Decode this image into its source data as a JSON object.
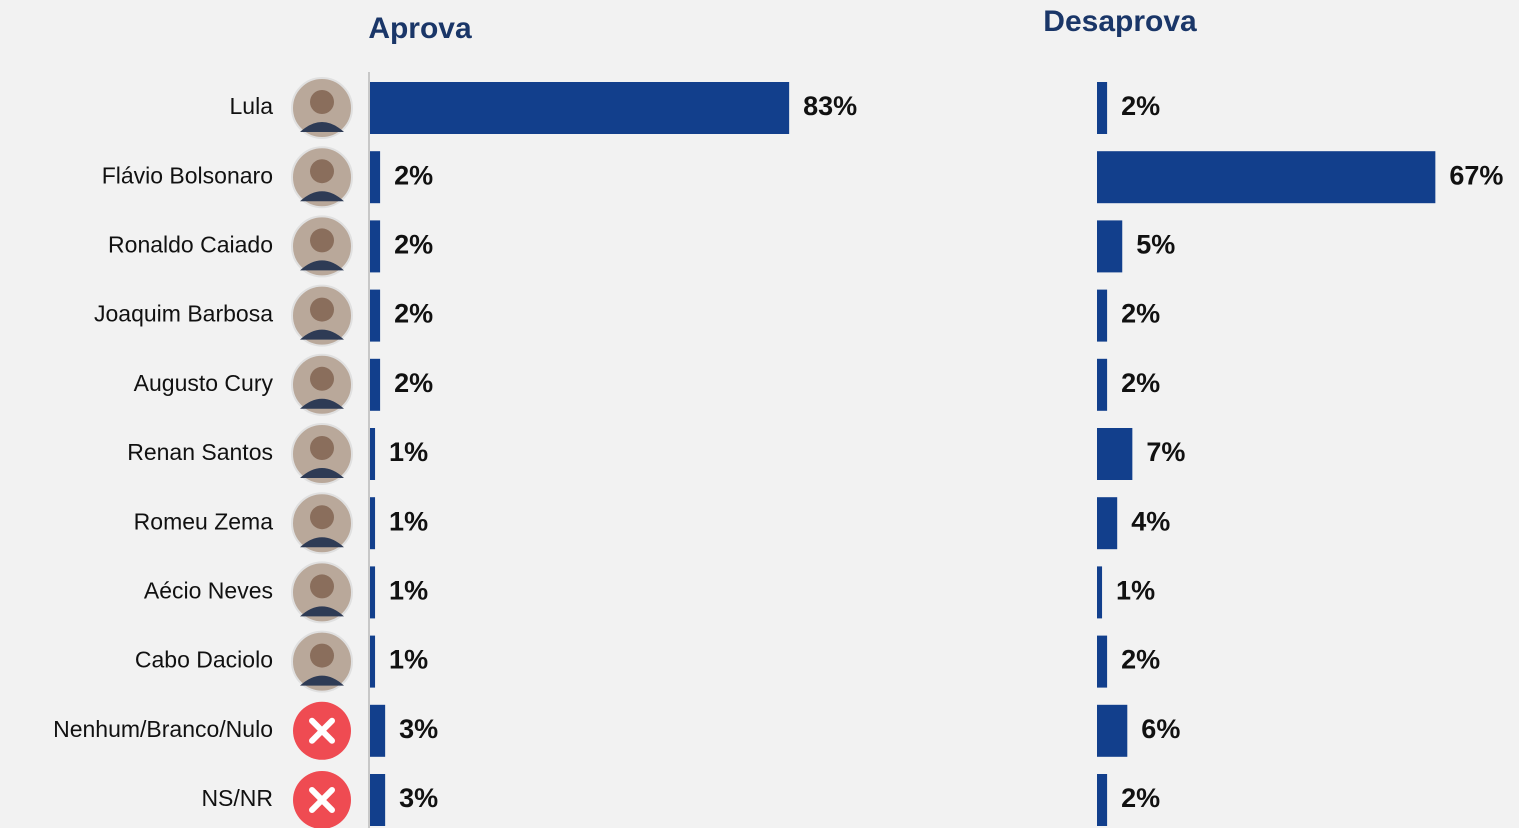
{
  "chart_data": {
    "type": "bar",
    "orientation": "horizontal",
    "categories": [
      "Lula",
      "Flávio Bolsonaro",
      "Ronaldo Caiado",
      "Joaquim Barbosa",
      "Augusto Cury",
      "Renan Santos",
      "Romeu Zema",
      "Aécio Neves",
      "Cabo Daciolo",
      "Nenhum/Branco/Nulo",
      "NS/NR"
    ],
    "xlim": [
      0,
      100
    ],
    "series": [
      {
        "name": "Aprova",
        "color": "#123f8c",
        "values": [
          83,
          2,
          2,
          2,
          2,
          1,
          1,
          1,
          1,
          3,
          3
        ],
        "value_labels": [
          "83%",
          "2%",
          "2%",
          "2%",
          "2%",
          "1%",
          "1%",
          "1%",
          "1%",
          "3%",
          "3%"
        ]
      },
      {
        "name": "Desaprova",
        "color": "#123f8c",
        "values": [
          2,
          67,
          5,
          2,
          2,
          7,
          4,
          1,
          2,
          6,
          2
        ],
        "value_labels": [
          "2%",
          "67%",
          "5%",
          "2%",
          "2%",
          "7%",
          "4%",
          "1%",
          "2%",
          "6%",
          "2%"
        ]
      }
    ]
  }
}
